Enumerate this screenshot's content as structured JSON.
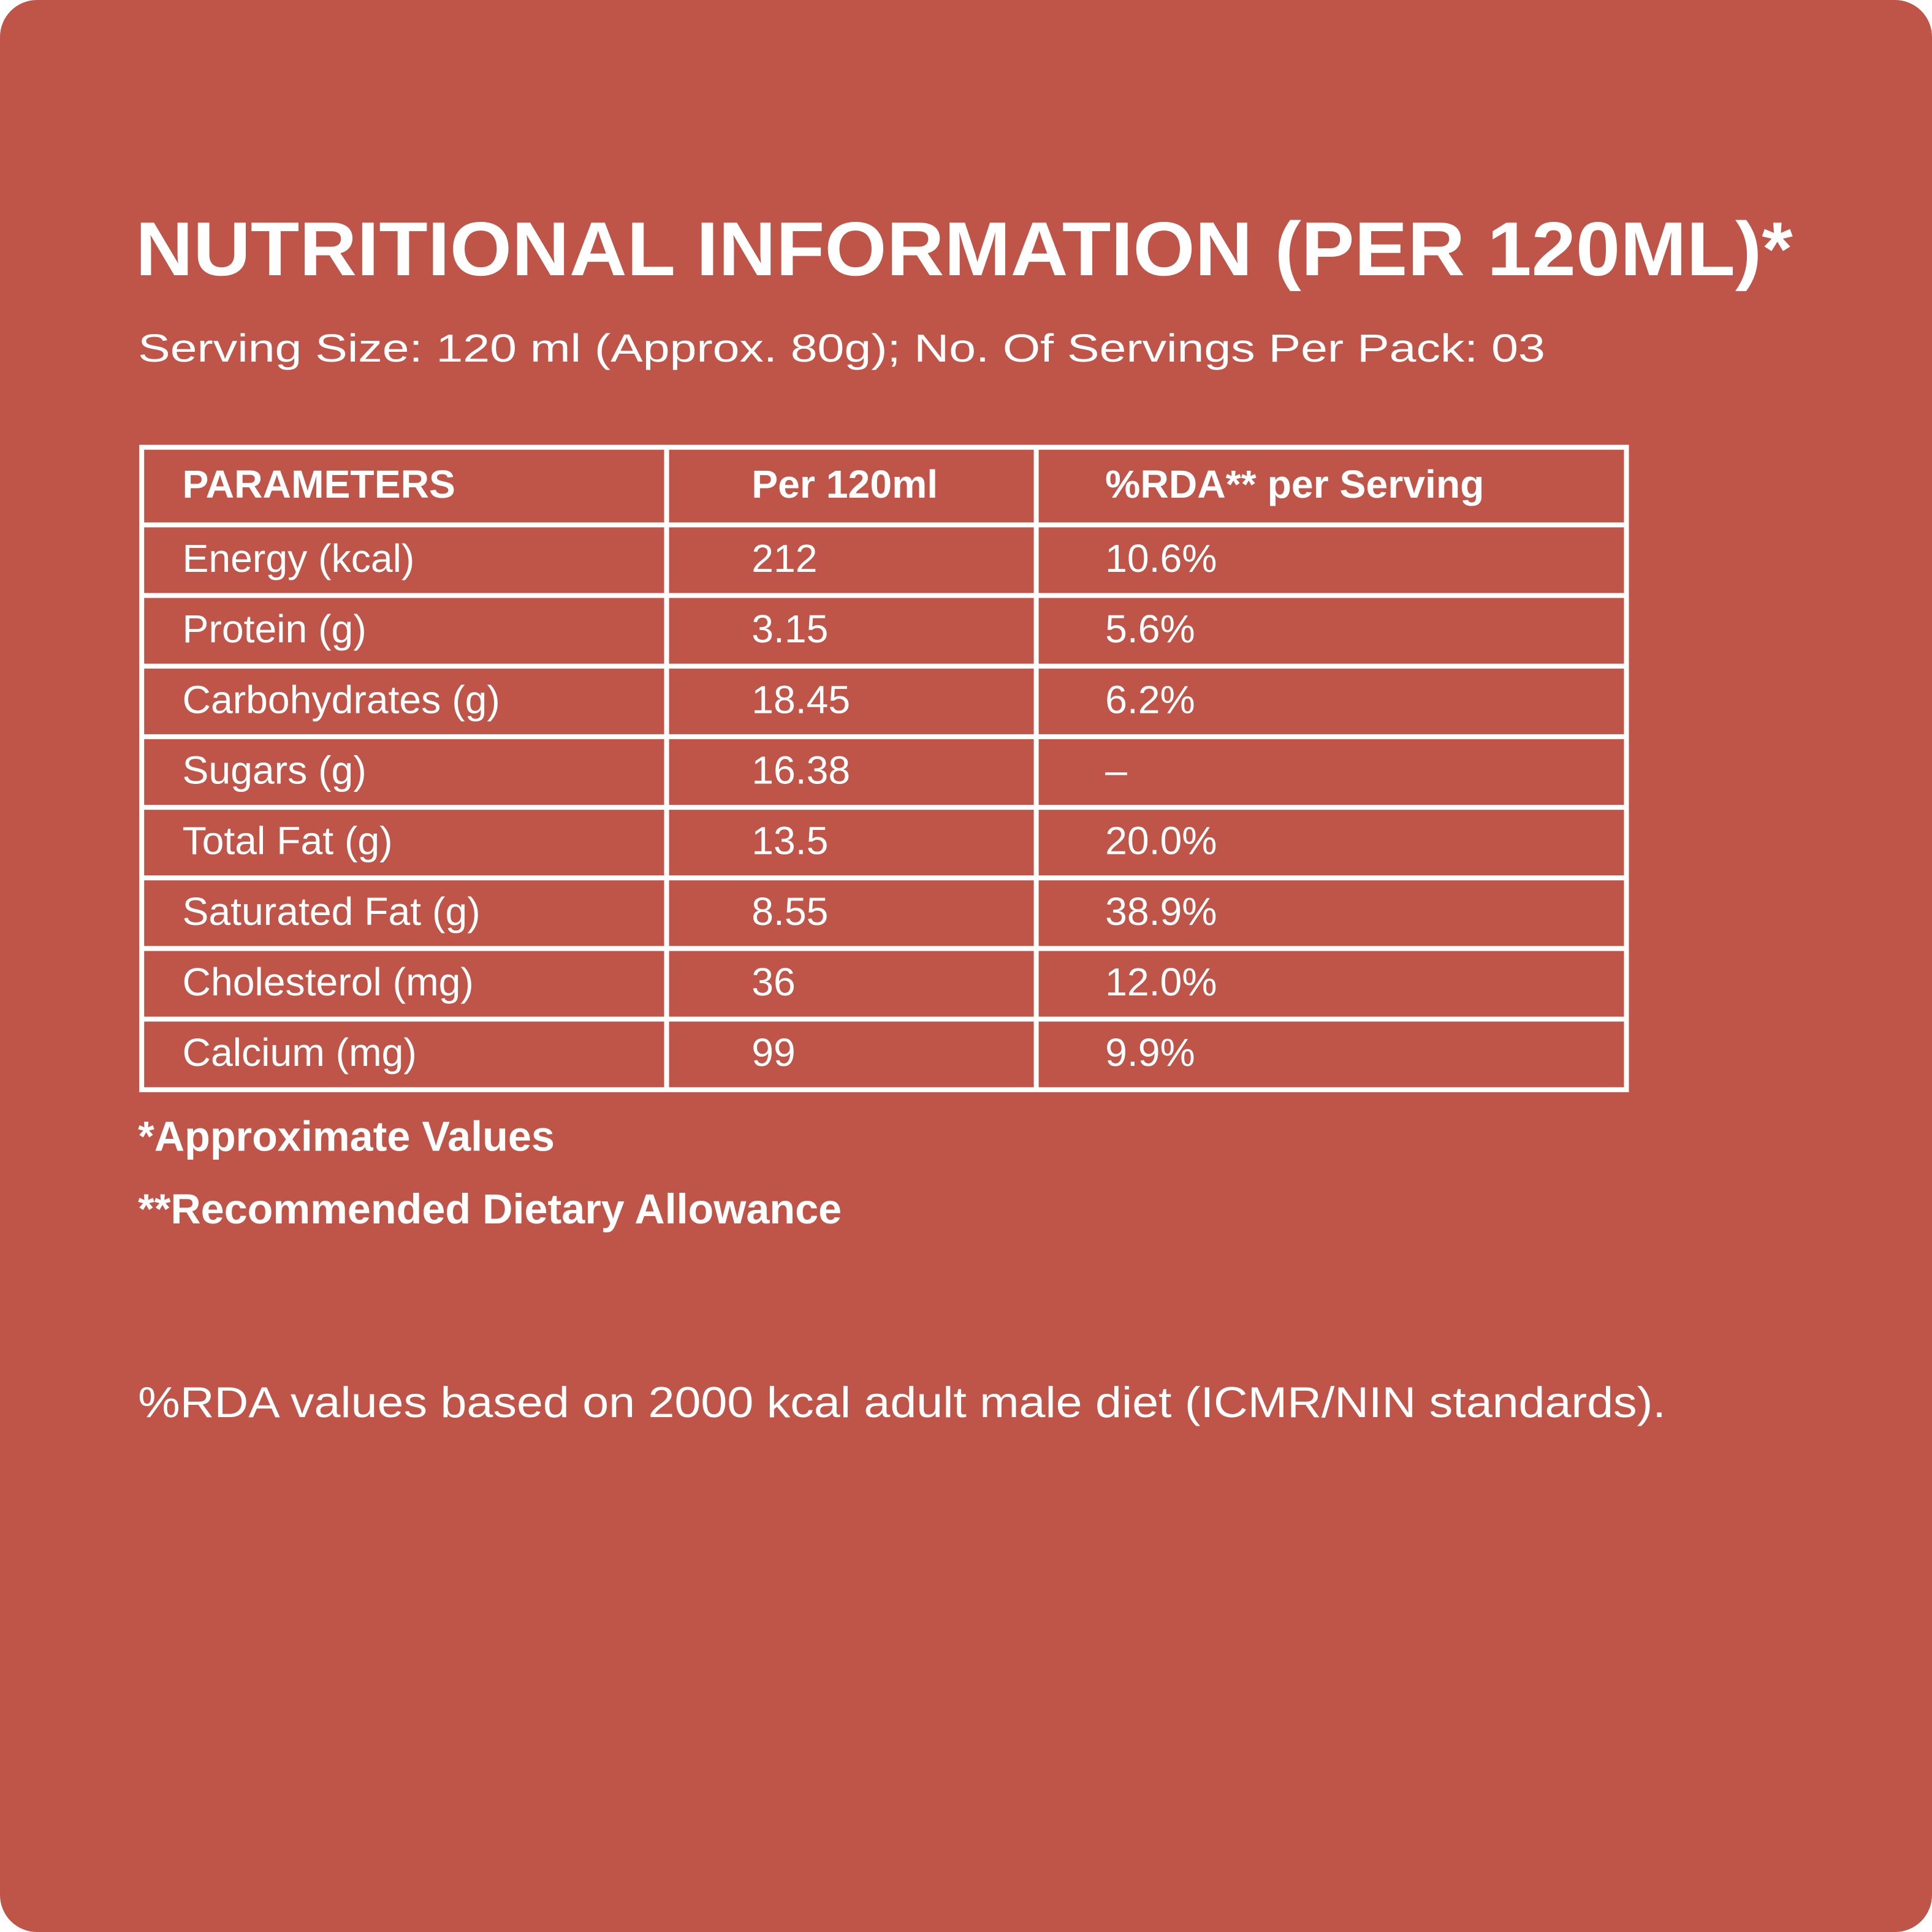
{
  "title": "NUTRITIONAL INFORMATION (PER 120ML)*",
  "subtitle": "Serving Size: 120 ml (Approx. 80g); No. Of Servings Per Pack: 03",
  "table": {
    "header": [
      "PARAMETERS",
      "Per 120ml",
      "%RDA** per Serving"
    ],
    "rows": [
      [
        "Energy (kcal)",
        "212",
        "10.6%"
      ],
      [
        "Protein (g)",
        "3.15",
        "5.6%"
      ],
      [
        "Carbohydrates (g)",
        "18.45",
        "6.2%"
      ],
      [
        "Sugars (g)",
        "16.38",
        "–"
      ],
      [
        "Total Fat (g)",
        "13.5",
        "20.0%"
      ],
      [
        "Saturated Fat (g)",
        "8.55",
        "38.9%"
      ],
      [
        "Cholesterol (mg)",
        "36",
        "12.0%"
      ],
      [
        "Calcium (mg)",
        "99",
        "9.9%"
      ]
    ]
  },
  "footnotes": [
    "*Approximate Values",
    "**Recommended Dietary Allowance"
  ],
  "note": "%RDA values based on 2000 kcal adult male diet (ICMR/NIN standards)."
}
